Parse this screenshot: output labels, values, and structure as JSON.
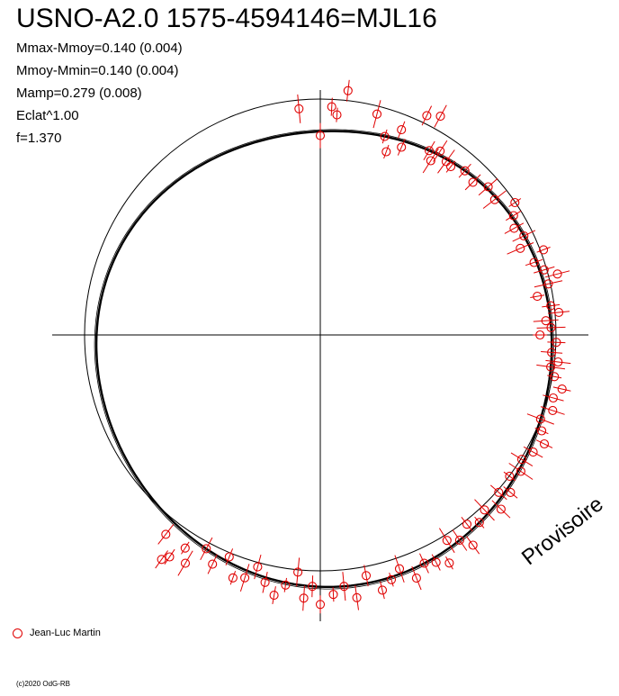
{
  "header": {
    "title": "USNO-A2.0 1575-4594146=MJL16",
    "stats": [
      "Mmax-Mmoy=0.140 (0.004)",
      "Mmoy-Mmin=0.140 (0.004)",
      "Mamp=0.279 (0.008)",
      "Eclat^1.00",
      "f=1.370"
    ]
  },
  "legend": {
    "label": "Jean-Luc Martin"
  },
  "footer": {
    "copyright": "(c)2020 OdG-RB",
    "watermark": "Provisoire"
  },
  "chart_data": {
    "type": "scatter",
    "subtype": "polar phase diagram",
    "title": "USNO-A2.0 1575-4594146=MJL16",
    "series": [
      {
        "name": "Jean-Luc Martin",
        "color": "#e00000",
        "marker": "open-circle",
        "points": [
          [
            0.012,
            1.08
          ],
          [
            0.008,
            1.12
          ],
          [
            0.018,
            1.2
          ],
          [
            0.0,
            0.98
          ],
          [
            0.04,
            1.1
          ],
          [
            0.055,
            0.93
          ],
          [
            0.06,
            1.05
          ],
          [
            0.072,
            1.15
          ],
          [
            0.08,
            1.17
          ],
          [
            0.09,
            0.96
          ],
          [
            0.05,
            1.0
          ],
          [
            0.065,
            0.97
          ],
          [
            0.085,
            1.0
          ],
          [
            0.092,
            1.02
          ],
          [
            0.1,
            0.99
          ],
          [
            0.105,
            0.98
          ],
          [
            0.115,
            1.0
          ],
          [
            0.125,
            0.98
          ],
          [
            0.135,
            1.01
          ],
          [
            0.145,
            0.99
          ],
          [
            0.155,
            1.05
          ],
          [
            0.162,
            1.01
          ],
          [
            0.17,
            0.98
          ],
          [
            0.178,
            1.0
          ],
          [
            0.185,
            0.96
          ],
          [
            0.192,
            1.05
          ],
          [
            0.198,
            0.99
          ],
          [
            0.205,
            1.02
          ],
          [
            0.21,
            1.07
          ],
          [
            0.215,
            1.02
          ],
          [
            0.222,
            0.96
          ],
          [
            0.23,
            1.01
          ],
          [
            0.235,
            1.04
          ],
          [
            0.24,
            0.98
          ],
          [
            0.245,
            1.0
          ],
          [
            0.25,
            0.95
          ],
          [
            0.255,
            1.02
          ],
          [
            0.262,
            1.0
          ],
          [
            0.268,
            1.03
          ],
          [
            0.272,
            1.0
          ],
          [
            0.278,
            1.02
          ],
          [
            0.285,
            1.06
          ],
          [
            0.292,
            1.03
          ],
          [
            0.3,
            1.04
          ],
          [
            0.308,
            1.0
          ],
          [
            0.315,
            1.02
          ],
          [
            0.322,
            1.05
          ],
          [
            0.33,
            1.02
          ],
          [
            0.338,
            0.99
          ],
          [
            0.345,
            1.01
          ],
          [
            0.352,
            0.98
          ],
          [
            0.36,
            1.02
          ],
          [
            0.365,
            0.98
          ],
          [
            0.372,
            1.03
          ],
          [
            0.38,
            0.98
          ],
          [
            0.388,
            1.0
          ],
          [
            0.395,
            0.97
          ],
          [
            0.4,
            1.05
          ],
          [
            0.405,
            1.0
          ],
          [
            0.412,
            0.97
          ],
          [
            0.418,
            1.05
          ],
          [
            0.425,
            1.02
          ],
          [
            0.432,
            1.0
          ],
          [
            0.44,
            1.04
          ],
          [
            0.448,
            0.98
          ],
          [
            0.455,
            1.01
          ],
          [
            0.462,
            1.04
          ],
          [
            0.47,
            0.97
          ],
          [
            0.478,
            1.05
          ],
          [
            0.485,
            1.0
          ],
          [
            0.492,
            1.03
          ],
          [
            0.5,
            1.07
          ],
          [
            0.505,
            1.0
          ],
          [
            0.51,
            1.05
          ],
          [
            0.515,
            0.95
          ],
          [
            0.522,
            1.01
          ],
          [
            0.528,
            1.06
          ],
          [
            0.535,
            1.02
          ],
          [
            0.542,
            0.97
          ],
          [
            0.548,
            1.03
          ],
          [
            0.555,
            1.05
          ],
          [
            0.562,
            0.98
          ],
          [
            0.57,
            1.04
          ],
          [
            0.578,
            1.0
          ],
          [
            0.585,
            1.1
          ],
          [
            0.59,
            1.05
          ],
          [
            0.595,
            1.12
          ],
          [
            0.598,
            1.15
          ],
          [
            0.605,
            1.06
          ],
          [
            0.985,
            1.12
          ]
        ]
      }
    ],
    "curves": [
      {
        "name": "reference circle",
        "style": "thin"
      },
      {
        "name": "fitted light curve",
        "style": "thick",
        "amplitude": 0.279
      }
    ],
    "axes": {
      "crosshair": true,
      "grid": false
    },
    "legend_position": "bottom-left"
  }
}
